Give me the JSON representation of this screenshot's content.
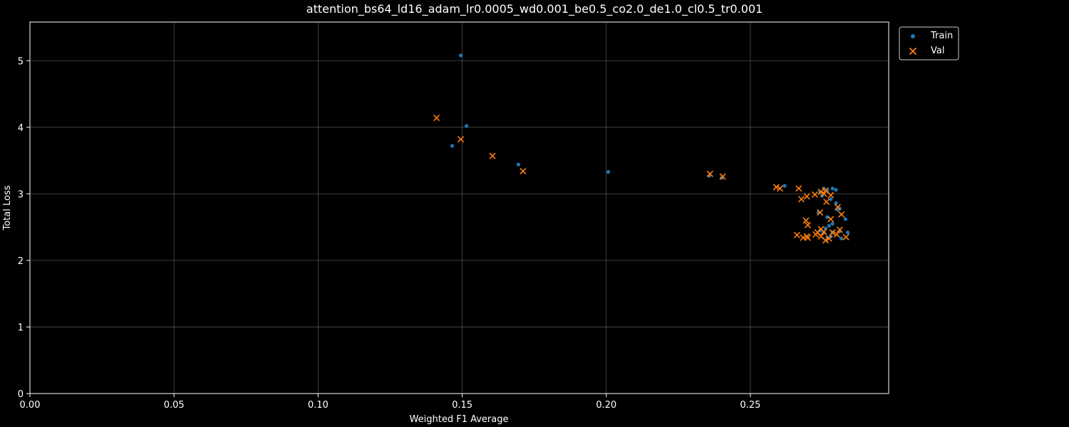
{
  "chart_data": {
    "type": "scatter",
    "title": "attention_bs64_ld16_adam_lr0.0005_wd0.001_be0.5_co2.0_de1.0_cl0.5_tr0.001",
    "xlabel": "Weighted F1 Average",
    "ylabel": "Total Loss",
    "xlim": [
      0,
      0.298
    ],
    "ylim": [
      0,
      5.58
    ],
    "xticks": [
      0.0,
      0.05,
      0.1,
      0.15,
      0.2,
      0.25
    ],
    "xtick_labels": [
      "0.00",
      "0.05",
      "0.10",
      "0.15",
      "0.20",
      "0.25"
    ],
    "yticks": [
      0,
      1,
      2,
      3,
      4,
      5
    ],
    "ytick_labels": [
      "0",
      "1",
      "2",
      "3",
      "4",
      "5"
    ],
    "grid": true,
    "legend_position": "outside-top-right",
    "series": [
      {
        "name": "Train",
        "marker": "dot",
        "color": "#1f77b4",
        "points": [
          [
            0.1495,
            5.08
          ],
          [
            0.1515,
            4.02
          ],
          [
            0.1465,
            3.72
          ],
          [
            0.1695,
            3.44
          ],
          [
            0.2007,
            3.33
          ],
          [
            0.2357,
            3.27
          ],
          [
            0.2401,
            3.24
          ],
          [
            0.2619,
            3.12
          ],
          [
            0.2755,
            3.08
          ],
          [
            0.2785,
            3.08
          ],
          [
            0.2797,
            3.06
          ],
          [
            0.2767,
            3.05
          ],
          [
            0.2742,
            3.03
          ],
          [
            0.2749,
            2.97
          ],
          [
            0.2779,
            2.92
          ],
          [
            0.2797,
            2.86
          ],
          [
            0.281,
            2.78
          ],
          [
            0.2803,
            2.76
          ],
          [
            0.2736,
            2.72
          ],
          [
            0.283,
            2.62
          ],
          [
            0.2767,
            2.65
          ],
          [
            0.2785,
            2.55
          ],
          [
            0.2773,
            2.52
          ],
          [
            0.2761,
            2.48
          ],
          [
            0.2742,
            2.45
          ],
          [
            0.2755,
            2.42
          ],
          [
            0.2785,
            2.42
          ],
          [
            0.281,
            2.44
          ],
          [
            0.2838,
            2.42
          ],
          [
            0.2779,
            2.36
          ],
          [
            0.2767,
            2.34
          ],
          [
            0.2816,
            2.33
          ]
        ]
      },
      {
        "name": "Val",
        "marker": "x",
        "color": "#ff7f0e",
        "points": [
          [
            0.1411,
            4.14
          ],
          [
            0.1495,
            3.82
          ],
          [
            0.1605,
            3.57
          ],
          [
            0.1711,
            3.34
          ],
          [
            0.236,
            3.3
          ],
          [
            0.2404,
            3.26
          ],
          [
            0.259,
            3.1
          ],
          [
            0.2603,
            3.08
          ],
          [
            0.2668,
            3.08
          ],
          [
            0.2696,
            2.96
          ],
          [
            0.2724,
            2.99
          ],
          [
            0.2745,
            3.03
          ],
          [
            0.2761,
            3.05
          ],
          [
            0.2779,
            2.98
          ],
          [
            0.2677,
            2.92
          ],
          [
            0.2764,
            2.88
          ],
          [
            0.2755,
            3.0
          ],
          [
            0.2803,
            2.8
          ],
          [
            0.2742,
            2.72
          ],
          [
            0.2816,
            2.69
          ],
          [
            0.2779,
            2.62
          ],
          [
            0.2693,
            2.6
          ],
          [
            0.2699,
            2.53
          ],
          [
            0.2745,
            2.47
          ],
          [
            0.281,
            2.46
          ],
          [
            0.2733,
            2.42
          ],
          [
            0.2755,
            2.43
          ],
          [
            0.2785,
            2.42
          ],
          [
            0.2662,
            2.38
          ],
          [
            0.2696,
            2.36
          ],
          [
            0.2683,
            2.34
          ],
          [
            0.2699,
            2.34
          ],
          [
            0.2727,
            2.39
          ],
          [
            0.2745,
            2.36
          ],
          [
            0.2761,
            2.3
          ],
          [
            0.2773,
            2.33
          ],
          [
            0.28,
            2.39
          ],
          [
            0.2832,
            2.35
          ]
        ]
      }
    ]
  }
}
